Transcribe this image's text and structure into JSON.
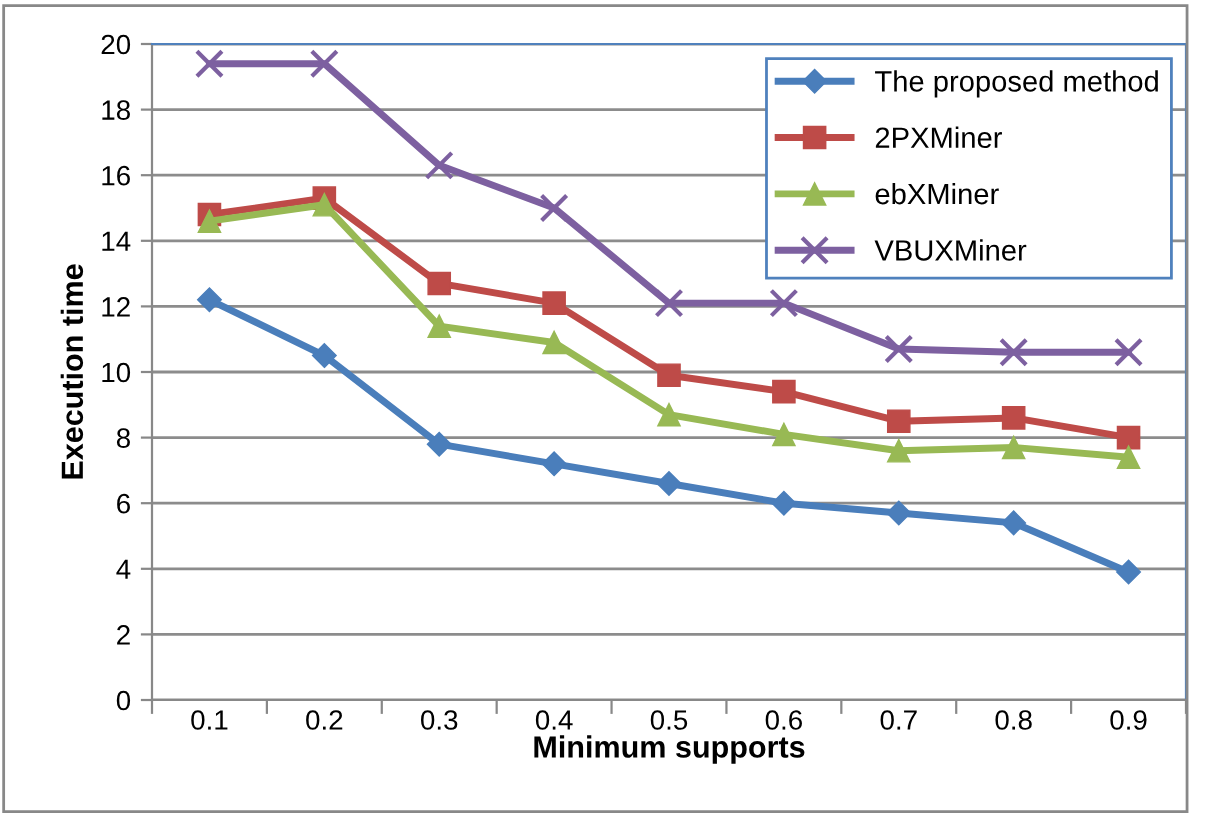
{
  "chart_data": {
    "type": "line",
    "xlabel": "Minimum supports",
    "ylabel": "Execution time",
    "categories": [
      "0.1",
      "0.2",
      "0.3",
      "0.4",
      "0.5",
      "0.6",
      "0.7",
      "0.8",
      "0.9"
    ],
    "series": [
      {
        "name": "The proposed method",
        "color": "#4a7ebb",
        "marker": "diamond",
        "values": [
          12.2,
          10.5,
          7.8,
          7.2,
          6.6,
          6.0,
          5.7,
          5.4,
          3.9
        ]
      },
      {
        "name": "2PXMiner",
        "color": "#be4b48",
        "marker": "square",
        "values": [
          14.8,
          15.3,
          12.7,
          12.1,
          9.9,
          9.4,
          8.5,
          8.6,
          8.0
        ]
      },
      {
        "name": "ebXMiner",
        "color": "#98b954",
        "marker": "triangle",
        "values": [
          14.6,
          15.1,
          11.4,
          10.9,
          8.7,
          8.1,
          7.6,
          7.7,
          7.4
        ]
      },
      {
        "name": "VBUXMiner",
        "color": "#7d60a0",
        "marker": "cross",
        "values": [
          19.4,
          19.4,
          16.3,
          15.0,
          12.1,
          12.1,
          10.7,
          10.6,
          10.6
        ]
      }
    ],
    "ylim": [
      0,
      20
    ],
    "yticks": [
      0,
      2,
      4,
      6,
      8,
      10,
      12,
      14,
      16,
      18,
      20
    ],
    "grid": "y",
    "legend": "top right",
    "line_style": "solid"
  }
}
